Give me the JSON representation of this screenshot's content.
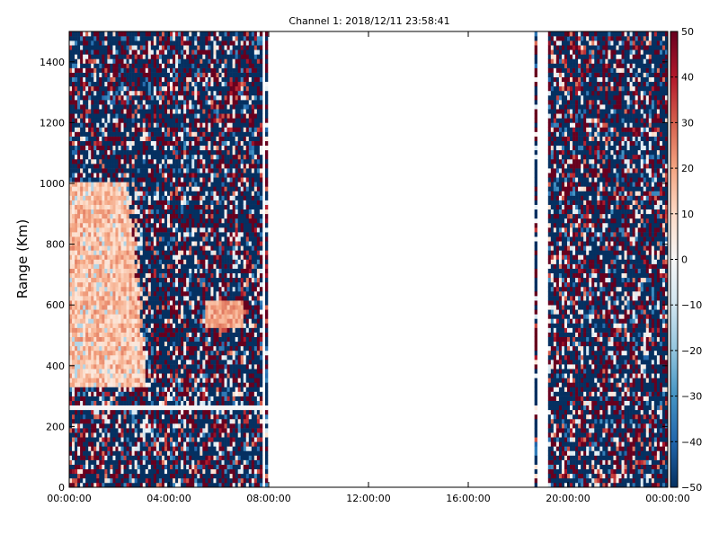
{
  "chart_data": {
    "type": "heatmap",
    "title": "Channel 1: 2018/12/11 23:58:41",
    "xlabel": "",
    "ylabel": "Range (Km)",
    "xlim": [
      "00:00:00",
      "24:00:00"
    ],
    "ylim": [
      0,
      1500
    ],
    "x_ticks": [
      "00:00:00",
      "04:00:00",
      "08:00:00",
      "12:00:00",
      "16:00:00",
      "20:00:00",
      "00:00:00"
    ],
    "y_ticks": [
      "0",
      "200",
      "400",
      "600",
      "800",
      "1000",
      "1200",
      "1400"
    ],
    "colorbar": {
      "range": [
        -50,
        50
      ],
      "ticks": [
        "50",
        "40",
        "30",
        "20",
        "10",
        "0",
        "−10",
        "−20",
        "−30",
        "−40",
        "−50"
      ],
      "colormap": "RdBu_r",
      "colors": {
        "low": "#053061",
        "mid": "#f7f7f7",
        "high": "#67001f"
      }
    },
    "data_coverage": [
      {
        "start_hour": 0.0,
        "end_hour": 7.8,
        "note": "dense data"
      },
      {
        "start_hour": 7.85,
        "end_hour": 8.0,
        "note": "single column"
      },
      {
        "start_hour": 18.6,
        "end_hour": 18.75,
        "note": "single column"
      },
      {
        "start_hour": 19.15,
        "end_hour": 24.0,
        "note": "dense data"
      }
    ],
    "features": [
      {
        "start_hour": 0.0,
        "end_hour": 3.0,
        "range_min": 330,
        "range_max": 1000,
        "value_approx": 15,
        "note": "positive echo region"
      },
      {
        "start_hour": 5.5,
        "end_hour": 7.0,
        "range_min": 530,
        "range_max": 620,
        "value_approx": 20,
        "note": "positive echo patch"
      },
      {
        "start_hour": 0.0,
        "end_hour": 8.0,
        "range_min": 250,
        "range_max": 265,
        "value_approx": 0,
        "note": "white horizontal gap line"
      }
    ],
    "grid": false
  }
}
